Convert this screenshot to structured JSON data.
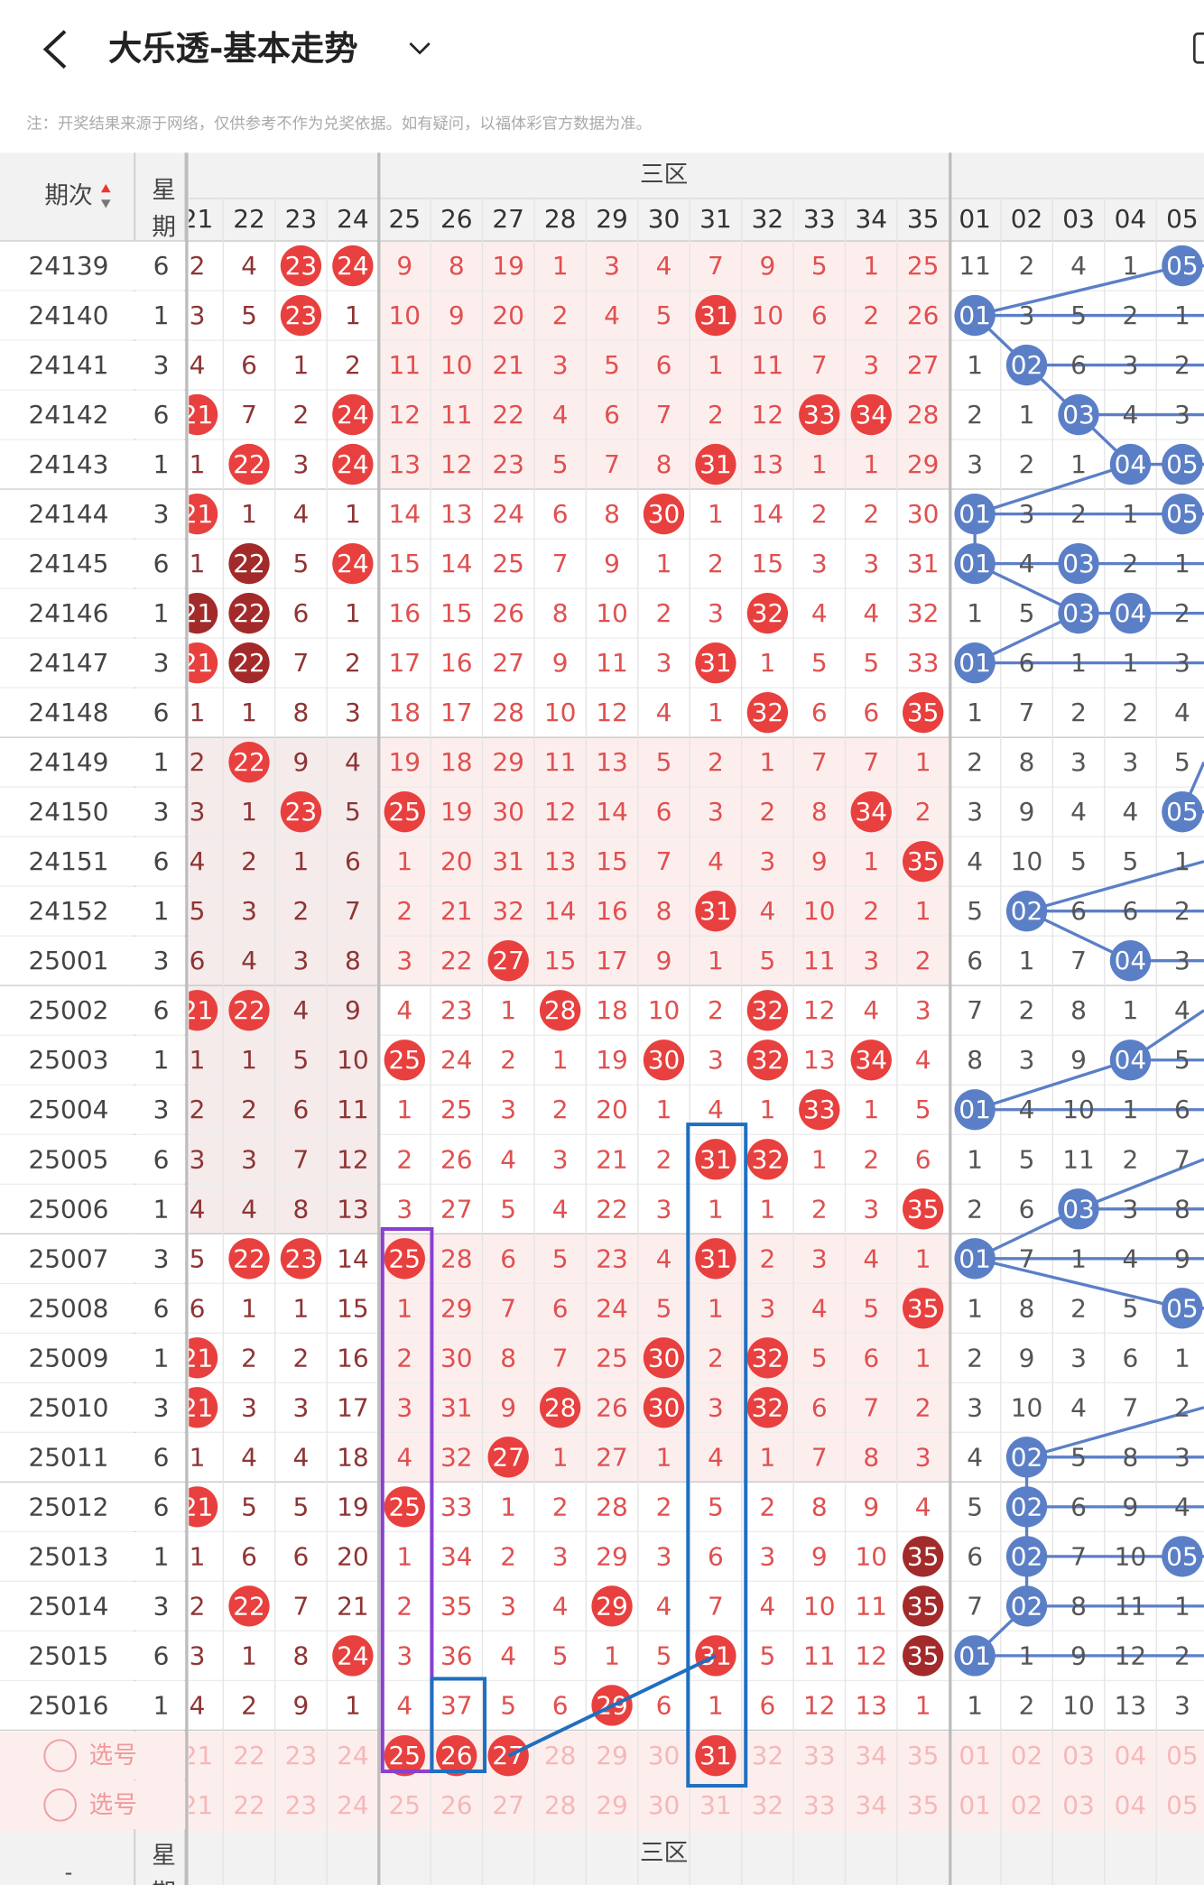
{
  "header": {
    "title": "大乐透-基本走势",
    "note": "注：开奖结果来源于网络，仅供参考不作为兑奖依据。如有疑问，以福体彩官方数据为准。"
  },
  "table": {
    "period_header": "期次",
    "weekday_header": "星期",
    "zone_label": "三区",
    "columns": [
      "21",
      "22",
      "23",
      "24",
      "25",
      "26",
      "27",
      "28",
      "29",
      "30",
      "31",
      "32",
      "33",
      "34",
      "35",
      "01",
      "02",
      "03",
      "04",
      "05"
    ],
    "rows": [
      {
        "period": "24139",
        "weekday": "6",
        "cells": [
          "2",
          "4",
          {
            "text": "23",
            "style": "hit"
          },
          {
            "text": "24",
            "style": "hit"
          },
          "9",
          "8",
          "19",
          "1",
          "3",
          "4",
          "7",
          "9",
          "5",
          "1",
          "25",
          "11",
          "2",
          "4",
          "1",
          {
            "text": "05",
            "style": "hit"
          }
        ]
      },
      {
        "period": "24140",
        "weekday": "1",
        "cells": [
          "3",
          "5",
          {
            "text": "23",
            "style": "hit"
          },
          "1",
          "10",
          "9",
          "20",
          "2",
          "4",
          "5",
          {
            "text": "31",
            "style": "hit"
          },
          "10",
          "6",
          "2",
          "26",
          {
            "text": "01",
            "style": "hit"
          },
          "3",
          "5",
          "2",
          "1"
        ]
      },
      {
        "period": "24141",
        "weekday": "3",
        "cells": [
          "4",
          "6",
          "1",
          "2",
          "11",
          "10",
          "21",
          "3",
          "5",
          "6",
          "1",
          "11",
          "7",
          "3",
          "27",
          "1",
          {
            "text": "02",
            "style": "hit"
          },
          "6",
          "3",
          "2"
        ]
      },
      {
        "period": "24142",
        "weekday": "6",
        "cells": [
          {
            "text": "21",
            "style": "hit"
          },
          "7",
          "2",
          {
            "text": "24",
            "style": "hit"
          },
          "12",
          "11",
          "22",
          "4",
          "6",
          "7",
          "2",
          "12",
          {
            "text": "33",
            "style": "hit"
          },
          {
            "text": "34",
            "style": "hit"
          },
          "28",
          "2",
          "1",
          {
            "text": "03",
            "style": "hit"
          },
          "4",
          "3"
        ]
      },
      {
        "period": "24143",
        "weekday": "1",
        "cells": [
          "1",
          {
            "text": "22",
            "style": "hit"
          },
          "3",
          {
            "text": "24",
            "style": "hit"
          },
          "13",
          "12",
          "23",
          "5",
          "7",
          "8",
          {
            "text": "31",
            "style": "hit"
          },
          "13",
          "1",
          "1",
          "29",
          "3",
          "2",
          "1",
          {
            "text": "04",
            "style": "hit"
          },
          {
            "text": "05",
            "style": "hit"
          }
        ]
      },
      {
        "period": "24144",
        "weekday": "3",
        "cells": [
          {
            "text": "21",
            "style": "hit"
          },
          "1",
          "4",
          "1",
          "14",
          "13",
          "24",
          "6",
          "8",
          {
            "text": "30",
            "style": "hit"
          },
          "1",
          "14",
          "2",
          "2",
          "30",
          {
            "text": "01",
            "style": "hit"
          },
          "3",
          "2",
          "1",
          {
            "text": "05",
            "style": "hit"
          }
        ]
      },
      {
        "period": "24145",
        "weekday": "6",
        "cells": [
          "1",
          {
            "text": "22",
            "style": "dark"
          },
          "5",
          {
            "text": "24",
            "style": "hit"
          },
          "15",
          "14",
          "25",
          "7",
          "9",
          "1",
          "2",
          "15",
          "3",
          "3",
          "31",
          {
            "text": "01",
            "style": "hit"
          },
          "4",
          {
            "text": "03",
            "style": "hit"
          },
          "2",
          "1"
        ]
      },
      {
        "period": "24146",
        "weekday": "1",
        "cells": [
          {
            "text": "21",
            "style": "dark"
          },
          {
            "text": "22",
            "style": "dark"
          },
          "6",
          "1",
          "16",
          "15",
          "26",
          "8",
          "10",
          "2",
          "3",
          {
            "text": "32",
            "style": "hit"
          },
          "4",
          "4",
          "32",
          "1",
          "5",
          {
            "text": "03",
            "style": "hit"
          },
          {
            "text": "04",
            "style": "hit"
          },
          "2"
        ]
      },
      {
        "period": "24147",
        "weekday": "3",
        "cells": [
          {
            "text": "21",
            "style": "hit"
          },
          {
            "text": "22",
            "style": "dark"
          },
          "7",
          "2",
          "17",
          "16",
          "27",
          "9",
          "11",
          "3",
          {
            "text": "31",
            "style": "hit"
          },
          "1",
          "5",
          "5",
          "33",
          {
            "text": "01",
            "style": "hit"
          },
          "6",
          "1",
          "1",
          "3"
        ]
      },
      {
        "period": "24148",
        "weekday": "6",
        "cells": [
          "1",
          "1",
          "8",
          "3",
          "18",
          "17",
          "28",
          "10",
          "12",
          "4",
          "1",
          {
            "text": "32",
            "style": "hit"
          },
          "6",
          "6",
          {
            "text": "35",
            "style": "hit"
          },
          "1",
          "7",
          "2",
          "2",
          "4"
        ]
      },
      {
        "period": "24149",
        "weekday": "1",
        "cells": [
          "2",
          {
            "text": "22",
            "style": "hit"
          },
          "9",
          "4",
          "19",
          "18",
          "29",
          "11",
          "13",
          "5",
          "2",
          "1",
          "7",
          "7",
          "1",
          "2",
          "8",
          "3",
          "3",
          "5"
        ]
      },
      {
        "period": "24150",
        "weekday": "3",
        "cells": [
          "3",
          "1",
          {
            "text": "23",
            "style": "hit"
          },
          "5",
          {
            "text": "25",
            "style": "hit"
          },
          "19",
          "30",
          "12",
          "14",
          "6",
          "3",
          "2",
          "8",
          {
            "text": "34",
            "style": "hit"
          },
          "2",
          "3",
          "9",
          "4",
          "4",
          {
            "text": "05",
            "style": "hit"
          }
        ]
      },
      {
        "period": "24151",
        "weekday": "6",
        "cells": [
          "4",
          "2",
          "1",
          "6",
          "1",
          "20",
          "31",
          "13",
          "15",
          "7",
          "4",
          "3",
          "9",
          "1",
          {
            "text": "35",
            "style": "hit"
          },
          "4",
          "10",
          "5",
          "5",
          "1"
        ]
      },
      {
        "period": "24152",
        "weekday": "1",
        "cells": [
          "5",
          "3",
          "2",
          "7",
          "2",
          "21",
          "32",
          "14",
          "16",
          "8",
          {
            "text": "31",
            "style": "hit"
          },
          "4",
          "10",
          "2",
          "1",
          "5",
          {
            "text": "02",
            "style": "hit"
          },
          "6",
          "6",
          "2"
        ]
      },
      {
        "period": "25001",
        "weekday": "3",
        "cells": [
          "6",
          "4",
          "3",
          "8",
          "3",
          "22",
          {
            "text": "27",
            "style": "hit"
          },
          "15",
          "17",
          "9",
          "1",
          "5",
          "11",
          "3",
          "2",
          "6",
          "1",
          "7",
          {
            "text": "04",
            "style": "hit"
          },
          "3"
        ]
      },
      {
        "period": "25002",
        "weekday": "6",
        "cells": [
          {
            "text": "21",
            "style": "hit"
          },
          {
            "text": "22",
            "style": "hit"
          },
          "4",
          "9",
          "4",
          "23",
          "1",
          {
            "text": "28",
            "style": "hit"
          },
          "18",
          "10",
          "2",
          {
            "text": "32",
            "style": "hit"
          },
          "12",
          "4",
          "3",
          "7",
          "2",
          "8",
          "1",
          "4"
        ]
      },
      {
        "period": "25003",
        "weekday": "1",
        "cells": [
          "1",
          "1",
          "5",
          "10",
          {
            "text": "25",
            "style": "hit"
          },
          "24",
          "2",
          "1",
          "19",
          {
            "text": "30",
            "style": "hit"
          },
          "3",
          {
            "text": "32",
            "style": "hit"
          },
          "13",
          {
            "text": "34",
            "style": "hit"
          },
          "4",
          "8",
          "3",
          "9",
          {
            "text": "04",
            "style": "hit"
          },
          "5"
        ]
      },
      {
        "period": "25004",
        "weekday": "3",
        "cells": [
          "2",
          "2",
          "6",
          "11",
          "1",
          "25",
          "3",
          "2",
          "20",
          "1",
          "4",
          "1",
          {
            "text": "33",
            "style": "hit"
          },
          "1",
          "5",
          {
            "text": "01",
            "style": "hit"
          },
          "4",
          "10",
          "1",
          "6"
        ]
      },
      {
        "period": "25005",
        "weekday": "6",
        "cells": [
          "3",
          "3",
          "7",
          "12",
          "2",
          "26",
          "4",
          "3",
          "21",
          "2",
          {
            "text": "31",
            "style": "hit"
          },
          {
            "text": "32",
            "style": "hit"
          },
          "1",
          "2",
          "6",
          "1",
          "5",
          "11",
          "2",
          "7"
        ]
      },
      {
        "period": "25006",
        "weekday": "1",
        "cells": [
          "4",
          "4",
          "8",
          "13",
          "3",
          "27",
          "5",
          "4",
          "22",
          "3",
          "1",
          "1",
          "2",
          "3",
          {
            "text": "35",
            "style": "hit"
          },
          "2",
          "6",
          {
            "text": "03",
            "style": "hit"
          },
          "3",
          "8"
        ]
      },
      {
        "period": "25007",
        "weekday": "3",
        "cells": [
          "5",
          {
            "text": "22",
            "style": "hit"
          },
          {
            "text": "23",
            "style": "hit"
          },
          "14",
          {
            "text": "25",
            "style": "hit"
          },
          "28",
          "6",
          "5",
          "23",
          "4",
          {
            "text": "31",
            "style": "hit"
          },
          "2",
          "3",
          "4",
          "1",
          {
            "text": "01",
            "style": "hit"
          },
          "7",
          "1",
          "4",
          "9"
        ]
      },
      {
        "period": "25008",
        "weekday": "6",
        "cells": [
          "6",
          "1",
          "1",
          "15",
          "1",
          "29",
          "7",
          "6",
          "24",
          "5",
          "1",
          "3",
          "4",
          "5",
          {
            "text": "35",
            "style": "hit"
          },
          "1",
          "8",
          "2",
          "5",
          {
            "text": "05",
            "style": "hit"
          }
        ]
      },
      {
        "period": "25009",
        "weekday": "1",
        "cells": [
          {
            "text": "21",
            "style": "hit"
          },
          "2",
          "2",
          "16",
          "2",
          "30",
          "8",
          "7",
          "25",
          {
            "text": "30",
            "style": "hit"
          },
          "2",
          {
            "text": "32",
            "style": "hit"
          },
          "5",
          "6",
          "1",
          "2",
          "9",
          "3",
          "6",
          "1"
        ]
      },
      {
        "period": "25010",
        "weekday": "3",
        "cells": [
          {
            "text": "21",
            "style": "hit"
          },
          "3",
          "3",
          "17",
          "3",
          "31",
          "9",
          {
            "text": "28",
            "style": "hit"
          },
          "26",
          {
            "text": "30",
            "style": "hit"
          },
          "3",
          {
            "text": "32",
            "style": "hit"
          },
          "6",
          "7",
          "2",
          "3",
          "10",
          "4",
          "7",
          "2"
        ]
      },
      {
        "period": "25011",
        "weekday": "6",
        "cells": [
          "1",
          "4",
          "4",
          "18",
          "4",
          "32",
          {
            "text": "27",
            "style": "hit"
          },
          "1",
          "27",
          "1",
          "4",
          "1",
          "7",
          "8",
          "3",
          "4",
          {
            "text": "02",
            "style": "hit"
          },
          "5",
          "8",
          "3"
        ]
      },
      {
        "period": "25012",
        "weekday": "6",
        "cells": [
          {
            "text": "21",
            "style": "hit"
          },
          "5",
          "5",
          "19",
          {
            "text": "25",
            "style": "hit"
          },
          "33",
          "1",
          "2",
          "28",
          "2",
          "5",
          "2",
          "8",
          "9",
          "4",
          "5",
          {
            "text": "02",
            "style": "hit"
          },
          "6",
          "9",
          "4"
        ]
      },
      {
        "period": "25013",
        "weekday": "1",
        "cells": [
          "1",
          "6",
          "6",
          "20",
          "1",
          "34",
          "2",
          "3",
          "29",
          "3",
          "6",
          "3",
          "9",
          "10",
          {
            "text": "35",
            "style": "dark"
          },
          "6",
          {
            "text": "02",
            "style": "hit"
          },
          "7",
          "10",
          {
            "text": "05",
            "style": "hit"
          }
        ]
      },
      {
        "period": "25014",
        "weekday": "3",
        "cells": [
          "2",
          {
            "text": "22",
            "style": "hit"
          },
          "7",
          "21",
          "2",
          "35",
          "3",
          "4",
          {
            "text": "29",
            "style": "hit"
          },
          "4",
          "7",
          "4",
          "10",
          "11",
          {
            "text": "35",
            "style": "dark"
          },
          "7",
          {
            "text": "02",
            "style": "hit"
          },
          "8",
          "11",
          "1"
        ]
      },
      {
        "period": "25015",
        "weekday": "6",
        "cells": [
          "3",
          "1",
          "8",
          {
            "text": "24",
            "style": "hit"
          },
          "3",
          "36",
          "4",
          "5",
          "1",
          "5",
          {
            "text": "31",
            "style": "hit"
          },
          "5",
          "11",
          "12",
          {
            "text": "35",
            "style": "dark"
          },
          {
            "text": "01",
            "style": "hit"
          },
          "1",
          "9",
          "12",
          "2"
        ]
      },
      {
        "period": "25016",
        "weekday": "1",
        "cells": [
          "4",
          "2",
          "9",
          "1",
          "4",
          "37",
          "5",
          "6",
          {
            "text": "29",
            "style": "hit"
          },
          "6",
          "1",
          "6",
          "12",
          "13",
          "1",
          "1",
          "2",
          "10",
          "13",
          "3"
        ]
      }
    ],
    "selection": [
      {
        "label": "选号",
        "picked": [
          "25",
          "26",
          "27",
          "31"
        ]
      },
      {
        "label": "选号"
      }
    ]
  },
  "footer": {
    "dash": "-"
  }
}
